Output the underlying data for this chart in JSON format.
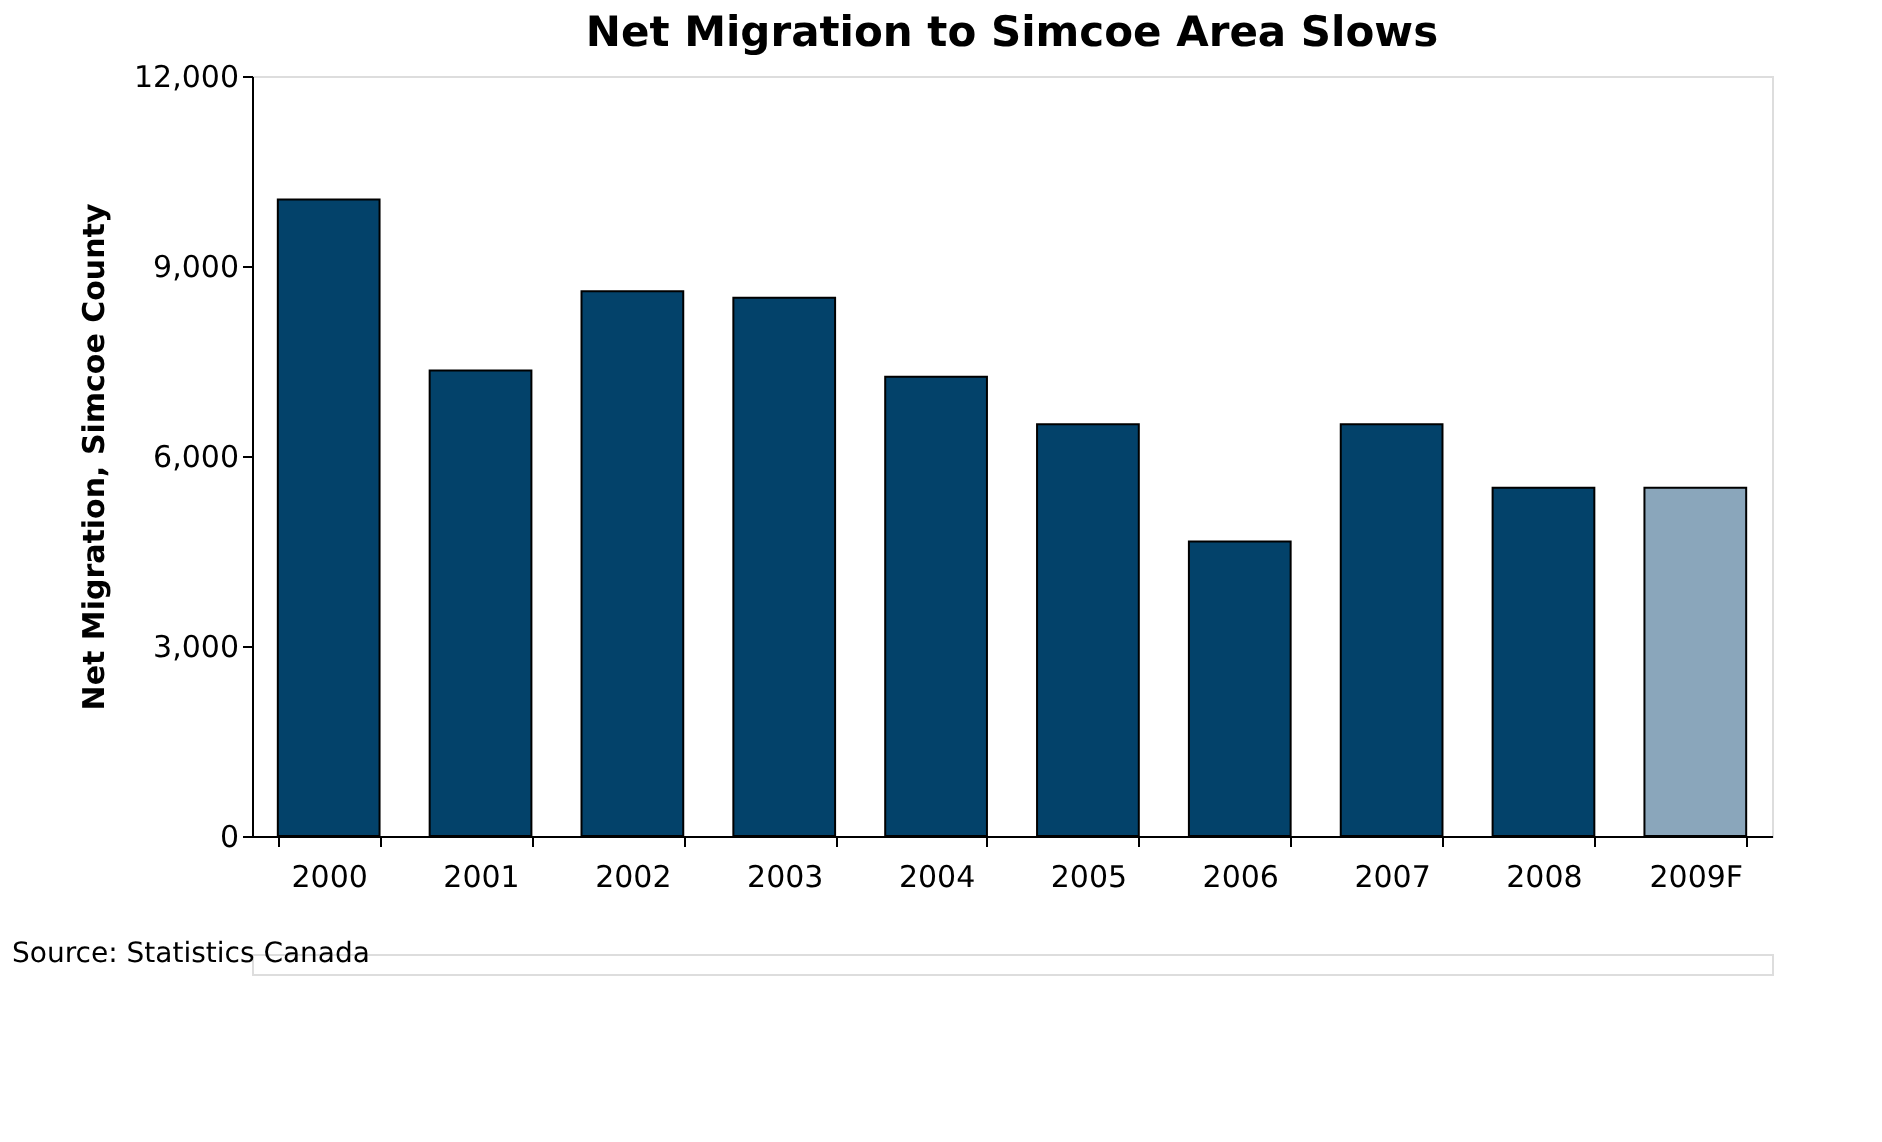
{
  "chart_data": {
    "type": "bar",
    "title": "Net Migration to Simcoe Area Slows",
    "ylabel": "Net Migration, Simcoe County",
    "categories": [
      "2000",
      "2001",
      "2002",
      "2003",
      "2004",
      "2005",
      "2006",
      "2007",
      "2008",
      "2009F"
    ],
    "values": [
      10050,
      7350,
      8600,
      8500,
      7250,
      6500,
      4650,
      6500,
      5500,
      5500
    ],
    "colors": [
      "#03426a",
      "#03426a",
      "#03426a",
      "#03426a",
      "#03426a",
      "#03426a",
      "#03426a",
      "#03426a",
      "#03426a",
      "#8aa6bb"
    ],
    "ylim": [
      0,
      12000
    ],
    "yticks": [
      0,
      {
        "value": 3000,
        "label": "3,000"
      },
      {
        "value": 6000,
        "label": "6,000"
      },
      {
        "value": 9000,
        "label": "9,000"
      },
      {
        "value": 12000,
        "label": "12,000"
      }
    ],
    "grid": false,
    "annotations": [
      "Source: Statistics Canada"
    ]
  }
}
